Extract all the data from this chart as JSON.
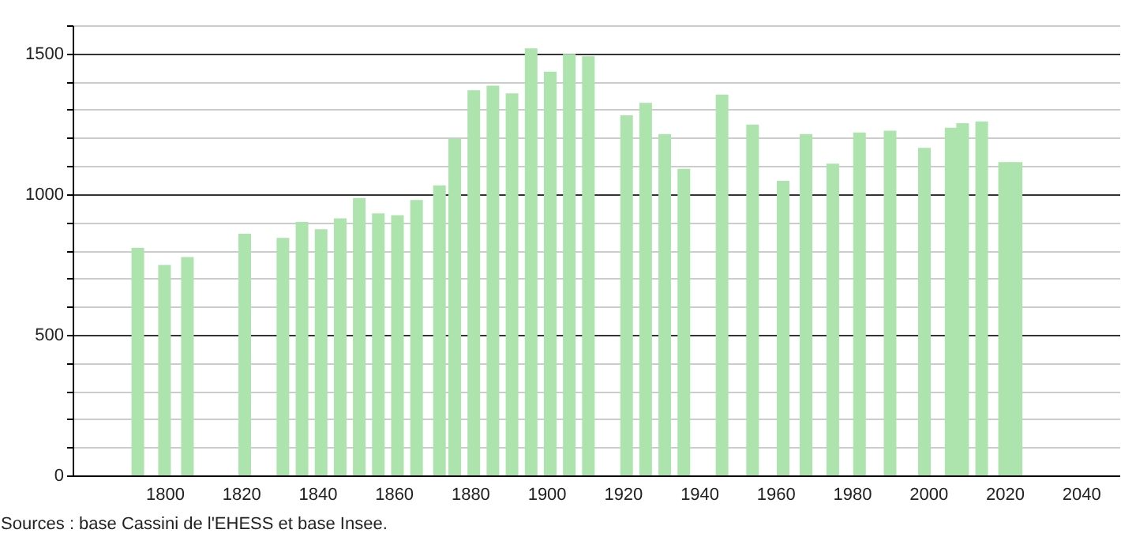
{
  "chart_data": {
    "type": "bar",
    "x": [
      1793,
      1800,
      1806,
      1821,
      1831,
      1836,
      1841,
      1846,
      1851,
      1856,
      1861,
      1866,
      1872,
      1876,
      1881,
      1886,
      1891,
      1896,
      1901,
      1906,
      1911,
      1921,
      1926,
      1931,
      1936,
      1946,
      1954,
      1962,
      1968,
      1975,
      1982,
      1990,
      1999,
      2006,
      2009,
      2014,
      2020,
      2023
    ],
    "values": [
      809,
      748,
      776,
      859,
      844,
      901,
      875,
      914,
      986,
      931,
      925,
      979,
      1031,
      1197,
      1369,
      1385,
      1358,
      1518,
      1435,
      1498,
      1490,
      1280,
      1324,
      1213,
      1090,
      1354,
      1247,
      1047,
      1213,
      1108,
      1219,
      1225,
      1164,
      1236,
      1252,
      1258,
      1114,
      1114
    ],
    "color": "#ade3ad",
    "xlim": [
      1778,
      2048
    ],
    "xticks": [
      1800,
      1820,
      1840,
      1860,
      1880,
      1900,
      1920,
      1940,
      1960,
      1980,
      2000,
      2020,
      2040
    ],
    "ylim": [
      0,
      1600
    ],
    "yticks": [
      0,
      {
        "value": 100,
        "label": null
      },
      {
        "value": 200,
        "label": null
      },
      {
        "value": 300,
        "label": null
      },
      {
        "value": 400,
        "label": null
      },
      500,
      {
        "value": 600,
        "label": null
      },
      {
        "value": 700,
        "label": null
      },
      {
        "value": 800,
        "label": null
      },
      {
        "value": 900,
        "label": null
      },
      1000,
      {
        "value": 1100,
        "label": null
      },
      {
        "value": 1200,
        "label": null
      },
      {
        "value": 1300,
        "label": null
      },
      {
        "value": 1400,
        "label": null
      },
      1500,
      {
        "value": 1600,
        "label": null
      }
    ],
    "grid": "y",
    "annotations": [
      "Sources : base Cassini de l'EHESS et base Insee."
    ]
  }
}
